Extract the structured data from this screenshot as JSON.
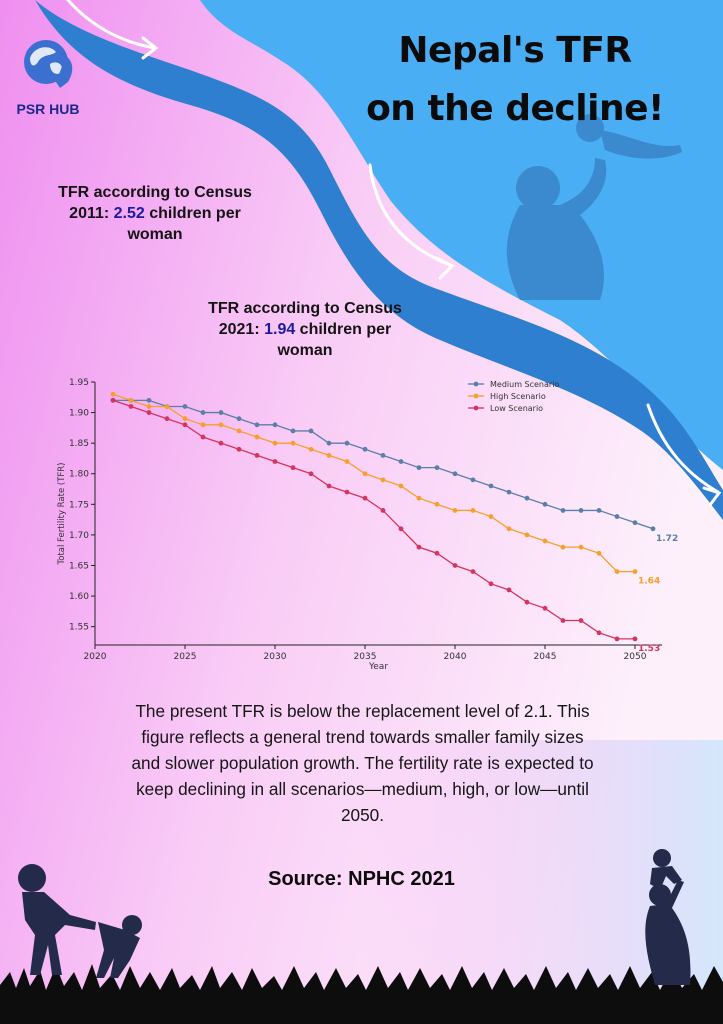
{
  "brand": {
    "name": "PSR HUB"
  },
  "headline": {
    "line1": "Nepal's TFR",
    "line2": "on the decline!"
  },
  "census_2011": {
    "prefix": "TFR according to Census 2011: ",
    "value": "2.52",
    "suffix": " children per woman"
  },
  "census_2021": {
    "prefix": "TFR according to Census 2021: ",
    "value": "1.94",
    "suffix": " children per woman"
  },
  "description": "The present TFR is below the replacement level of 2.1. This figure reflects a general trend towards smaller family sizes and slower population growth. The fertility rate is expected to keep declining in all scenarios—medium, high, or low—until 2050.",
  "source": "Source: NPHC 2021",
  "colors": {
    "medium": "#5b7fa6",
    "high": "#f5a02a",
    "low": "#d6345f",
    "accent": "#1b1aa0",
    "sky": "#49aef3"
  },
  "chart_data": {
    "type": "line",
    "title": "",
    "xlabel": "Year",
    "ylabel": "Total Fertility Rate (TFR)",
    "xlim": [
      2020,
      2051.5
    ],
    "ylim": [
      1.52,
      1.95
    ],
    "xticks": [
      2020,
      2025,
      2030,
      2035,
      2040,
      2045,
      2050
    ],
    "yticks": [
      1.55,
      1.6,
      1.65,
      1.7,
      1.75,
      1.8,
      1.85,
      1.9,
      1.95
    ],
    "x": [
      2021,
      2022,
      2023,
      2024,
      2025,
      2026,
      2027,
      2028,
      2029,
      2030,
      2031,
      2032,
      2033,
      2034,
      2035,
      2036,
      2037,
      2038,
      2039,
      2040,
      2041,
      2042,
      2043,
      2044,
      2045,
      2046,
      2047,
      2048,
      2049,
      2050,
      2051
    ],
    "legend_position": "top-right",
    "series": [
      {
        "name": "Medium Scenario",
        "color": "#5b7fa6",
        "end_label": "1.72",
        "values": [
          1.92,
          1.92,
          1.92,
          1.91,
          1.91,
          1.9,
          1.9,
          1.89,
          1.88,
          1.88,
          1.87,
          1.87,
          1.85,
          1.85,
          1.84,
          1.83,
          1.82,
          1.81,
          1.81,
          1.8,
          1.79,
          1.78,
          1.77,
          1.76,
          1.75,
          1.74,
          1.74,
          1.74,
          1.73,
          1.72,
          1.71
        ]
      },
      {
        "name": "High Scenario",
        "color": "#f5a02a",
        "end_label": "1.64",
        "values": [
          1.93,
          1.92,
          1.91,
          1.91,
          1.89,
          1.88,
          1.88,
          1.87,
          1.86,
          1.85,
          1.85,
          1.84,
          1.83,
          1.82,
          1.8,
          1.79,
          1.78,
          1.76,
          1.75,
          1.74,
          1.74,
          1.73,
          1.71,
          1.7,
          1.69,
          1.68,
          1.68,
          1.67,
          1.64,
          1.64,
          null
        ]
      },
      {
        "name": "Low Scenario",
        "color": "#d6345f",
        "end_label": "1.53",
        "values": [
          1.92,
          1.91,
          1.9,
          1.89,
          1.88,
          1.86,
          1.85,
          1.84,
          1.83,
          1.82,
          1.81,
          1.8,
          1.78,
          1.77,
          1.76,
          1.74,
          1.71,
          1.68,
          1.67,
          1.65,
          1.64,
          1.62,
          1.61,
          1.59,
          1.58,
          1.56,
          1.56,
          1.54,
          1.53,
          1.53,
          null
        ]
      }
    ]
  }
}
